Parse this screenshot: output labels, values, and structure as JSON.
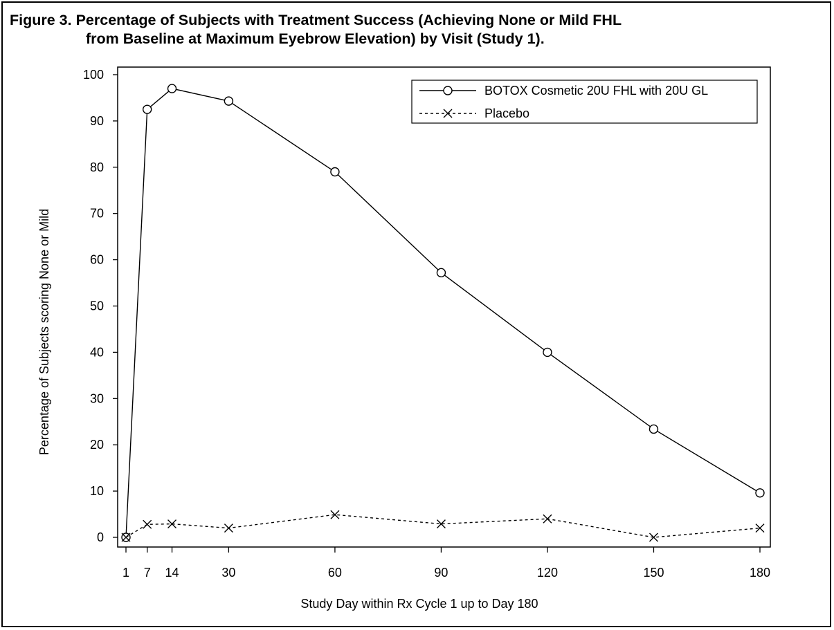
{
  "figure": {
    "title_line1": "Figure 3. Percentage of Subjects with Treatment Success (Achieving None or Mild FHL",
    "title_line2": "from Baseline at Maximum Eyebrow Elevation) by Visit (Study 1)."
  },
  "chart_data": {
    "type": "line",
    "xlabel": "Study Day within Rx Cycle 1 up to Day 180",
    "ylabel": "Percentage of Subjects scoring None or Mild",
    "x_ticks": [
      1,
      7,
      14,
      30,
      60,
      90,
      120,
      150,
      180
    ],
    "y_ticks": [
      0,
      10,
      20,
      30,
      40,
      50,
      60,
      70,
      80,
      90,
      100
    ],
    "xlim": [
      -1.5,
      184
    ],
    "ylim": [
      -2,
      102
    ],
    "grid": false,
    "legend_position": "top-right",
    "series": [
      {
        "name": "BOTOX Cosmetic 20U FHL with 20U GL",
        "marker": "circle",
        "line_style": "solid",
        "color": "#000000",
        "x": [
          1,
          7,
          14,
          30,
          60,
          90,
          120,
          150,
          180
        ],
        "y": [
          0,
          92.5,
          97,
          94.3,
          79,
          57.2,
          40,
          23.4,
          9.6
        ]
      },
      {
        "name": "Placebo",
        "marker": "x",
        "line_style": "dashed",
        "color": "#000000",
        "x": [
          1,
          7,
          14,
          30,
          60,
          90,
          120,
          150,
          180
        ],
        "y": [
          0,
          2.8,
          2.9,
          2,
          4.9,
          2.9,
          4,
          0,
          2
        ]
      }
    ]
  }
}
